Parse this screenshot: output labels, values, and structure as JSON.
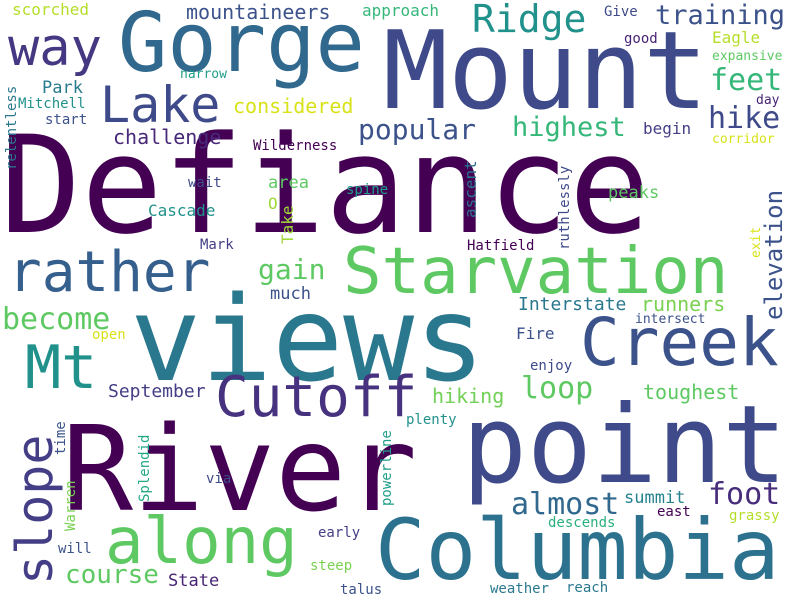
{
  "words": [
    {
      "text": "Defiance",
      "color": "#440154"
    },
    {
      "text": "views",
      "color": "#2a788e"
    },
    {
      "text": "River",
      "color": "#440154"
    },
    {
      "text": "point",
      "color": "#3e4a89"
    },
    {
      "text": "Mount",
      "color": "#3e4a89"
    },
    {
      "text": "Gorge",
      "color": "#31688e"
    },
    {
      "text": "Columbia",
      "color": "#2c728e"
    },
    {
      "text": "Starvation",
      "color": "#5ec962"
    },
    {
      "text": "Creek",
      "color": "#3b528b"
    },
    {
      "text": "rather",
      "color": "#355f8d"
    },
    {
      "text": "Cutoff",
      "color": "#46327e"
    },
    {
      "text": "along",
      "color": "#5ec962"
    },
    {
      "text": "Mt",
      "color": "#21918c"
    },
    {
      "text": "slope",
      "color": "#433e85"
    },
    {
      "text": "Lake",
      "color": "#3e4a89"
    },
    {
      "text": "way",
      "color": "#453781"
    },
    {
      "text": "Ridge",
      "color": "#21918c"
    },
    {
      "text": "training",
      "color": "#3b528b"
    },
    {
      "text": "popular",
      "color": "#3b528b"
    },
    {
      "text": "highest",
      "color": "#35b779"
    },
    {
      "text": "hike",
      "color": "#3e4a89"
    },
    {
      "text": "feet",
      "color": "#35b779"
    },
    {
      "text": "elevation",
      "color": "#3b528b"
    },
    {
      "text": "gain",
      "color": "#5ec962"
    },
    {
      "text": "become",
      "color": "#5ec962"
    },
    {
      "text": "loop",
      "color": "#5ec962"
    },
    {
      "text": "foot",
      "color": "#472d7b"
    },
    {
      "text": "almost",
      "color": "#31688e"
    },
    {
      "text": "course",
      "color": "#5ec962"
    },
    {
      "text": "mountaineers",
      "color": "#3b528b"
    },
    {
      "text": "challenge",
      "color": "#482878"
    },
    {
      "text": "considered",
      "color": "#d8e219"
    },
    {
      "text": "runners",
      "color": "#7ad151"
    },
    {
      "text": "toughest",
      "color": "#5ec962"
    },
    {
      "text": "hiking",
      "color": "#73d056"
    },
    {
      "text": "September",
      "color": "#433e85"
    },
    {
      "text": "Interstate",
      "color": "#2a788e"
    },
    {
      "text": "summit",
      "color": "#26828e"
    },
    {
      "text": "State",
      "color": "#482475"
    },
    {
      "text": "scorched",
      "color": "#b5de2b"
    },
    {
      "text": "approach",
      "color": "#35b779"
    },
    {
      "text": "Give",
      "color": "#3e4a89"
    },
    {
      "text": "good",
      "color": "#482475"
    },
    {
      "text": "Eagle",
      "color": "#b5de2b"
    },
    {
      "text": "expansive",
      "color": "#5ec962"
    },
    {
      "text": "narrow",
      "color": "#1f9e89"
    },
    {
      "text": "Park",
      "color": "#287c8e"
    },
    {
      "text": "Mitchell",
      "color": "#21918c"
    },
    {
      "text": "start",
      "color": "#3b528b"
    },
    {
      "text": "relentless",
      "color": "#2a788e"
    },
    {
      "text": "day",
      "color": "#482475"
    },
    {
      "text": "corridor",
      "color": "#d8e219"
    },
    {
      "text": "begin",
      "color": "#433e85"
    },
    {
      "text": "Wilderness",
      "color": "#440154"
    },
    {
      "text": "area",
      "color": "#5ec962"
    },
    {
      "text": "wait",
      "color": "#3e4a89"
    },
    {
      "text": "spine",
      "color": "#1f9e89"
    },
    {
      "text": "Cascade",
      "color": "#21918c"
    },
    {
      "text": "O",
      "color": "#a0da39"
    },
    {
      "text": "Take",
      "color": "#a0da39"
    },
    {
      "text": "ascent",
      "color": "#2c728e"
    },
    {
      "text": "ruthlessly",
      "color": "#3e4a89"
    },
    {
      "text": "peaks",
      "color": "#5ec962"
    },
    {
      "text": "Mark",
      "color": "#433e85"
    },
    {
      "text": "Hatfield",
      "color": "#440154"
    },
    {
      "text": "exit",
      "color": "#d8e219"
    },
    {
      "text": "much",
      "color": "#3b528b"
    },
    {
      "text": "Fire",
      "color": "#3b528b"
    },
    {
      "text": "open",
      "color": "#d8e219"
    },
    {
      "text": "intersect",
      "color": "#3b528b"
    },
    {
      "text": "enjoy",
      "color": "#3e4a89"
    },
    {
      "text": "plenty",
      "color": "#21918c"
    },
    {
      "text": "powerline",
      "color": "#1f9e89"
    },
    {
      "text": "time",
      "color": "#3b528b"
    },
    {
      "text": "Splendid",
      "color": "#22a884"
    },
    {
      "text": "via",
      "color": "#3e4a89"
    },
    {
      "text": "Warren",
      "color": "#7ad151"
    },
    {
      "text": "will",
      "color": "#3b528b"
    },
    {
      "text": "early",
      "color": "#433e85"
    },
    {
      "text": "descends",
      "color": "#2ab07f"
    },
    {
      "text": "east",
      "color": "#440154"
    },
    {
      "text": "grassy",
      "color": "#b5de2b"
    },
    {
      "text": "steep",
      "color": "#7ad151"
    },
    {
      "text": "talus",
      "color": "#3b528b"
    },
    {
      "text": "weather",
      "color": "#2a788e"
    },
    {
      "text": "reach",
      "color": "#2a788e"
    }
  ]
}
